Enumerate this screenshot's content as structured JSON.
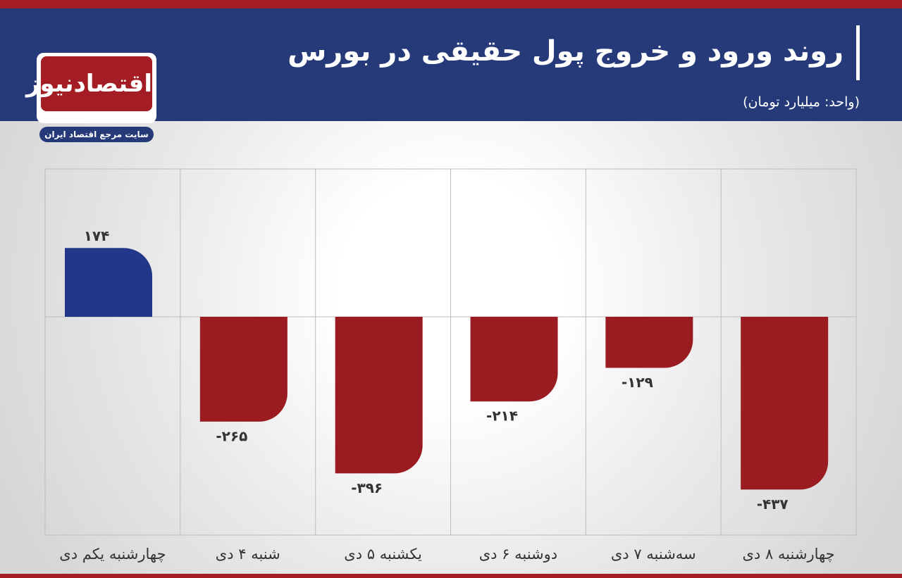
{
  "logo": {
    "name": "اقتصادنیوز",
    "tagline": "سایت مرجع اقتصاد ایران"
  },
  "chart_data": {
    "type": "bar",
    "title": "روند ورود و خروج پول حقیقی در بورس",
    "subtitle": "(واحد: میلیارد تومان)",
    "categories": [
      "چهارشنبه یکم دی",
      "شنبه ۴ دی",
      "یکشنبه ۵ دی",
      "دوشنبه ۶ دی",
      "سه‌شنبه ۷ دی",
      "چهارشنبه ۸ دی"
    ],
    "values": [
      174,
      -265,
      -396,
      -214,
      -129,
      -437
    ],
    "value_labels": [
      "۱۷۴",
      "-۲۶۵",
      "-۳۹۶",
      "-۲۱۴",
      "-۱۲۹",
      "-۴۳۷"
    ],
    "positive_color": "#22368a",
    "negative_color": "#9b1c20",
    "ylim": [
      -552,
      374
    ]
  }
}
